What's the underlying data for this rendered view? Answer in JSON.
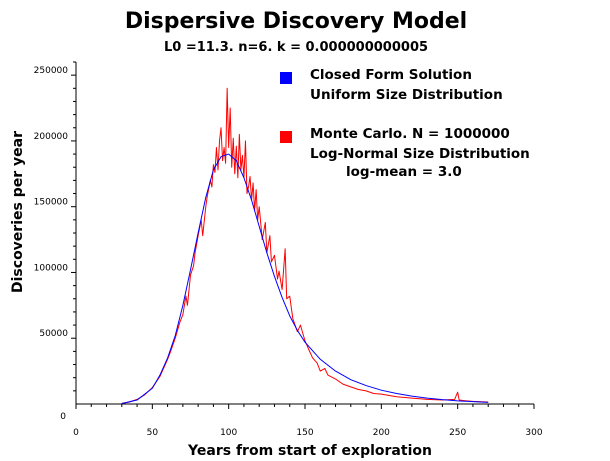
{
  "colors": {
    "closed_form": "#0000ff",
    "monte_carlo": "#ff0000"
  },
  "chart_data": {
    "type": "line",
    "title": "Dispersive Discovery Model",
    "subtitle": "L0 =11.3. n=6. k = 0.000000000005",
    "xlabel": "Years from start of exploration",
    "ylabel": "Discoveries per year",
    "xlim": [
      0,
      300
    ],
    "ylim": [
      0,
      260000
    ],
    "x_ticks": [
      "0",
      "50",
      "100",
      "150",
      "200",
      "250",
      "300"
    ],
    "y_ticks": [
      "0",
      "50000",
      "100000",
      "150000",
      "200000",
      "250000"
    ],
    "legend": {
      "position": "top-right",
      "entries": [
        {
          "lines": [
            "Closed Form Solution",
            "Uniform Size Distribution"
          ]
        },
        {
          "lines": [
            "Monte Carlo. N = 1000000",
            "Log-Normal Size Distribution",
            "log-mean = 3.0"
          ]
        }
      ]
    },
    "series": [
      {
        "name": "Closed Form Solution",
        "color": "blue",
        "x": [
          30,
          40,
          50,
          55,
          60,
          65,
          70,
          75,
          80,
          85,
          90,
          95,
          100,
          105,
          110,
          115,
          120,
          125,
          130,
          135,
          140,
          145,
          150,
          160,
          170,
          180,
          190,
          200,
          210,
          220,
          230,
          240,
          250,
          260,
          270
        ],
        "y": [
          400,
          3000,
          12000,
          22000,
          35000,
          52000,
          75000,
          102000,
          130000,
          157000,
          178000,
          188000,
          190000,
          185000,
          172000,
          155000,
          135000,
          115000,
          97000,
          81000,
          67000,
          56000,
          47000,
          34000,
          25000,
          18500,
          14000,
          10500,
          8000,
          6000,
          4500,
          3300,
          2400,
          1800,
          1200
        ]
      },
      {
        "name": "Monte Carlo. N = 1000000",
        "color": "red",
        "x": [
          30,
          35,
          40,
          45,
          50,
          55,
          60,
          62,
          65,
          68,
          70,
          72,
          73,
          75,
          77,
          78,
          80,
          82,
          83,
          85,
          86,
          88,
          89,
          90,
          91,
          92,
          93,
          94,
          95,
          96,
          97,
          98,
          99,
          100,
          101,
          102,
          103,
          104,
          105,
          106,
          107,
          108,
          109,
          110,
          111,
          112,
          113,
          114,
          115,
          116,
          117,
          118,
          119,
          120,
          122,
          124,
          125,
          127,
          128,
          130,
          132,
          133,
          135,
          137,
          138,
          140,
          142,
          145,
          147,
          150,
          153,
          155,
          158,
          160,
          163,
          165,
          170,
          175,
          180,
          185,
          190,
          195,
          200,
          210,
          220,
          225,
          230,
          240,
          248,
          250,
          251,
          255,
          260,
          270
        ],
        "y": [
          500,
          1500,
          3500,
          7000,
          12500,
          21000,
          34000,
          40000,
          50000,
          62000,
          68000,
          82000,
          75000,
          98000,
          105000,
          115000,
          128000,
          140000,
          128000,
          150000,
          158000,
          170000,
          165000,
          182000,
          176000,
          195000,
          178000,
          200000,
          210000,
          185000,
          195000,
          183000,
          240000,
          195000,
          225000,
          180000,
          202000,
          175000,
          196000,
          172000,
          205000,
          178000,
          189000,
          172000,
          200000,
          160000,
          165000,
          173000,
          155000,
          168000,
          147000,
          163000,
          140000,
          150000,
          125000,
          138000,
          115000,
          128000,
          108000,
          113000,
          95000,
          101000,
          87000,
          118000,
          80000,
          82000,
          65000,
          55000,
          60000,
          48000,
          40000,
          35000,
          31000,
          25000,
          27000,
          22000,
          19000,
          15000,
          13000,
          11000,
          10000,
          8000,
          7500,
          5500,
          4500,
          4000,
          3500,
          3000,
          3500,
          9000,
          3000,
          2500,
          2000,
          1500
        ]
      }
    ]
  }
}
